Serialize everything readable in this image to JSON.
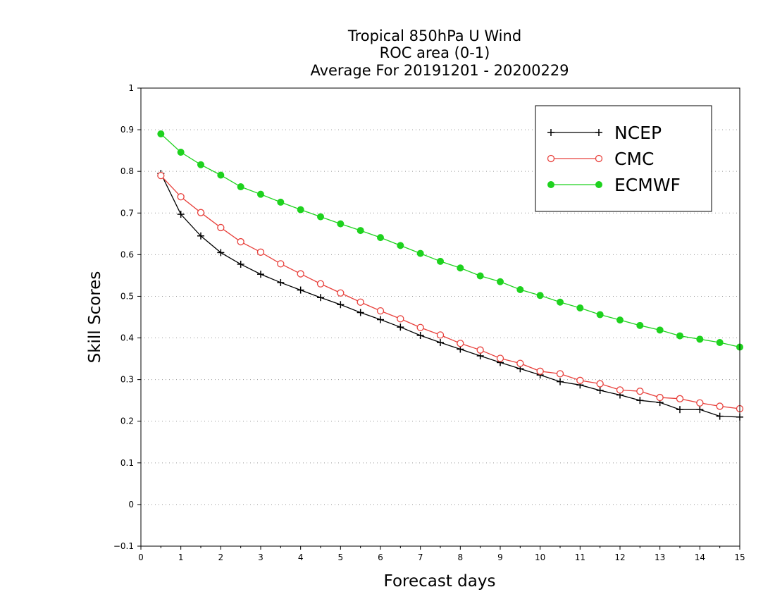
{
  "chart_data": {
    "type": "line",
    "title_lines": [
      "Tropical 850hPa U Wind",
      "ROC area (0-1)",
      "Average For 20191201 - 20200229"
    ],
    "xlabel": "Forecast days",
    "ylabel": "Skill Scores",
    "xlim": [
      0,
      15
    ],
    "ylim": [
      -0.1,
      1
    ],
    "x_ticks": [
      "0",
      "1",
      "2",
      "3",
      "4",
      "5",
      "6",
      "7",
      "8",
      "9",
      "10",
      "11",
      "12",
      "13",
      "14",
      "15"
    ],
    "y_ticks": [
      "−0.1",
      "0",
      "0.1",
      "0.2",
      "0.3",
      "0.4",
      "0.5",
      "0.6",
      "0.7",
      "0.8",
      "0.9",
      "1"
    ],
    "grid": "horizontal dotted",
    "legend_position": "top-right",
    "x": [
      0.5,
      1,
      1.5,
      2,
      2.5,
      3,
      3.5,
      4,
      4.5,
      5,
      5.5,
      6,
      6.5,
      7,
      7.5,
      8,
      8.5,
      9,
      9.5,
      10,
      10.5,
      11,
      11.5,
      12,
      12.5,
      13,
      13.5,
      14,
      14.5,
      15
    ],
    "series": [
      {
        "name": "NCEP",
        "color": "#000000",
        "marker": "plus",
        "values": [
          0.795,
          0.697,
          0.645,
          0.605,
          0.577,
          0.553,
          0.533,
          0.515,
          0.497,
          0.48,
          0.461,
          0.444,
          0.426,
          0.406,
          0.389,
          0.373,
          0.357,
          0.341,
          0.326,
          0.311,
          0.295,
          0.287,
          0.274,
          0.263,
          0.25,
          0.245,
          0.228,
          0.228,
          0.212,
          0.21
        ]
      },
      {
        "name": "CMC",
        "color": "#e8413c",
        "marker": "open-circle",
        "values": [
          0.79,
          0.739,
          0.701,
          0.665,
          0.631,
          0.606,
          0.578,
          0.554,
          0.53,
          0.508,
          0.486,
          0.465,
          0.446,
          0.425,
          0.407,
          0.387,
          0.371,
          0.351,
          0.339,
          0.32,
          0.314,
          0.298,
          0.29,
          0.275,
          0.272,
          0.257,
          0.254,
          0.244,
          0.236,
          0.23
        ]
      },
      {
        "name": "ECMWF",
        "color": "#1ed21e",
        "marker": "filled-circle",
        "values": [
          0.89,
          0.846,
          0.816,
          0.791,
          0.763,
          0.745,
          0.726,
          0.708,
          0.691,
          0.674,
          0.658,
          0.641,
          0.622,
          0.603,
          0.584,
          0.568,
          0.549,
          0.535,
          0.516,
          0.502,
          0.486,
          0.472,
          0.456,
          0.443,
          0.43,
          0.419,
          0.405,
          0.397,
          0.389,
          0.378
        ]
      }
    ]
  }
}
